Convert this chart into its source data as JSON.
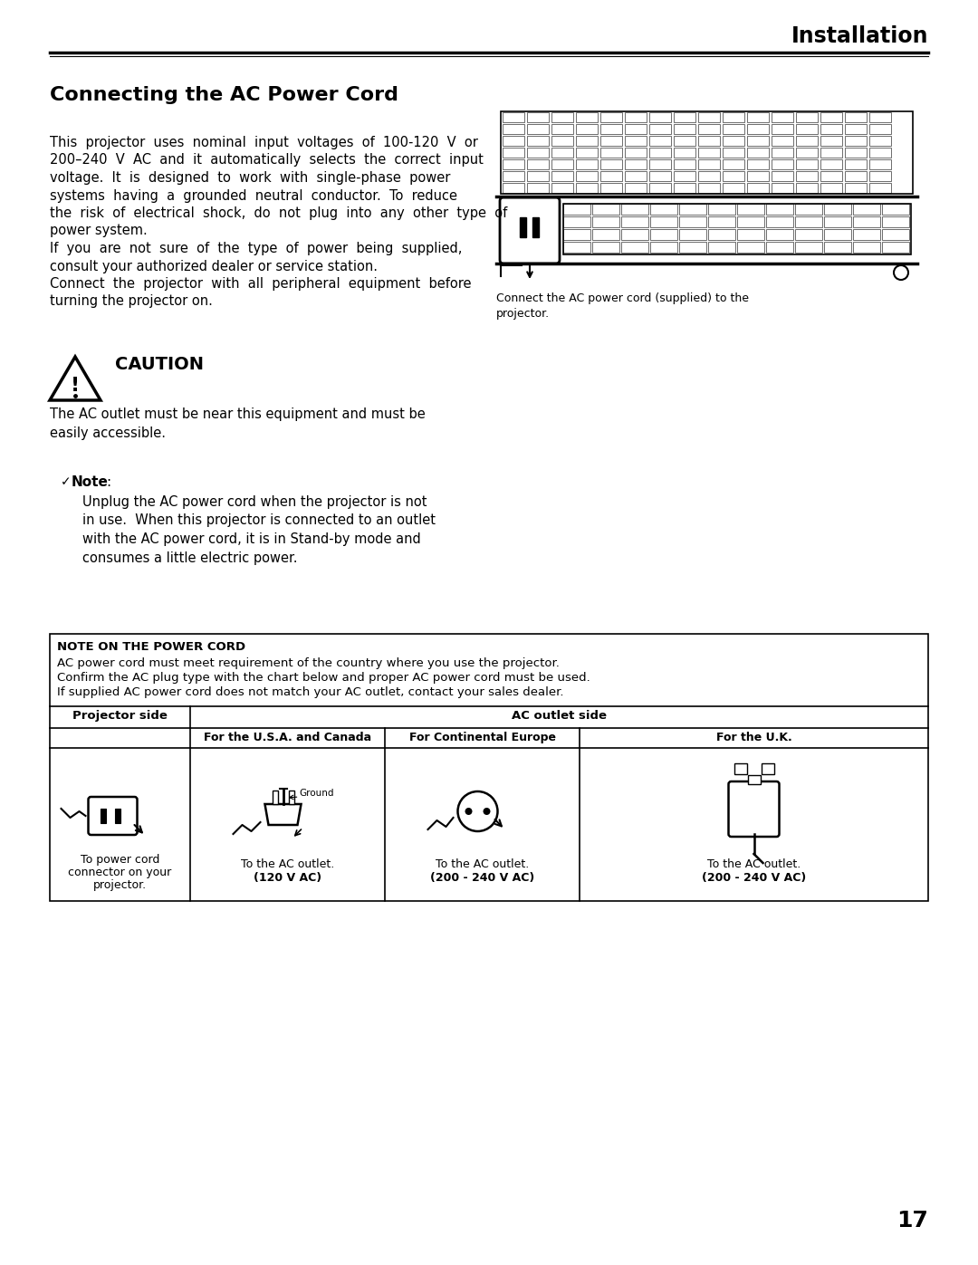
{
  "page_bg": "#ffffff",
  "header_text": "Installation",
  "section_title": "Connecting the AC Power Cord",
  "para1": "This projector uses nominal input voltages of 100-120 V or 200–240 V AC and it automatically selects the correct input voltage. It is designed to work with single-phase power systems having a grounded neutral conductor. To reduce the risk of electrical shock, do not plug into any other type of power system.",
  "para2": "If you are not sure of the type of power being supplied, consult your authorized dealer or service station.",
  "para3": "Connect the projector with all peripheral equipment before turning the projector on.",
  "image_caption": "Connect the AC power cord (supplied) to the\nprojector.",
  "caution_label": "CAUTION",
  "caution_text": "The AC outlet must be near this equipment and must be\neasily accessible.",
  "note_text_line1": "Unplug the AC power cord when the projector is not",
  "note_text_line2": "in use.  When this projector is connected to an outlet",
  "note_text_line3": "with the AC power cord, it is in Stand-by mode and",
  "note_text_line4": "consumes a little electric power.",
  "note_box_title": "NOTE ON THE POWER CORD",
  "note_box_line1": "AC power cord must meet requirement of the country where you use the projector.",
  "note_box_line2": "Confirm the AC plug type with the chart below and proper AC power cord must be used.",
  "note_box_line3": "If supplied AC power cord does not match your AC outlet, contact your sales dealer.",
  "table_col0": "Projector side",
  "table_col1": "AC outlet side",
  "table_sub1": "For the U.S.A. and Canada",
  "table_sub2": "For Continental Europe",
  "table_sub3": "For the U.K.",
  "table_label0a": "To power cord",
  "table_label0b": "connector on your",
  "table_label0c": "projector.",
  "table_label1a": "To the AC outlet.",
  "table_label1b": "(120 V AC)",
  "table_label2a": "To the AC outlet.",
  "table_label2b": "(200 - 240 V AC)",
  "table_label3a": "To the AC outlet.",
  "table_label3b": "(200 - 240 V AC)",
  "page_number": "17"
}
